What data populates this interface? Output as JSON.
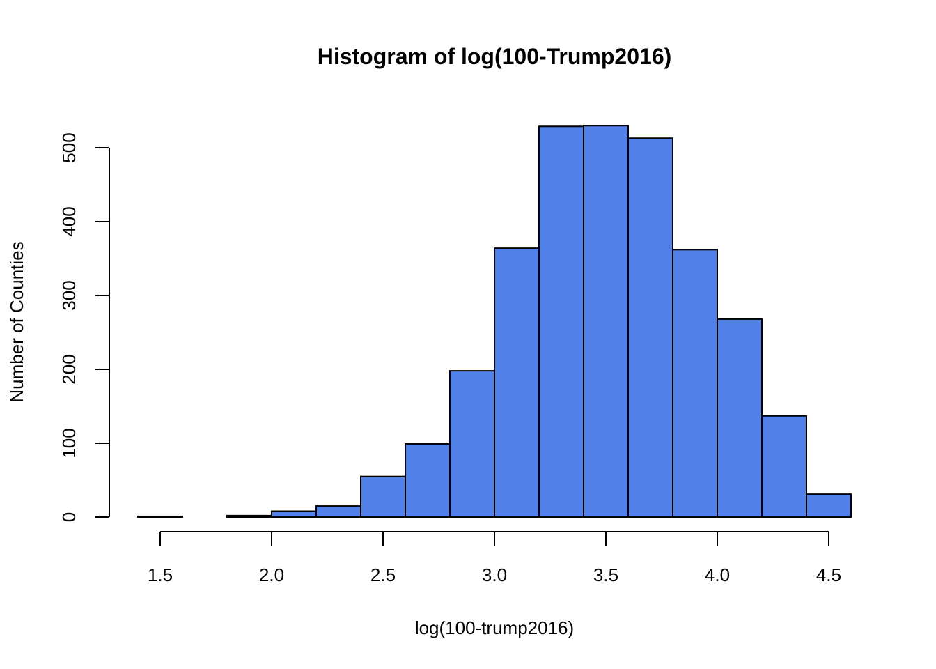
{
  "chart_data": {
    "type": "bar",
    "title": "Histogram of log(100-Trump2016)",
    "xlabel": "log(100-trump2016)",
    "ylabel": "Number of Counties",
    "xlim": [
      1.4,
      4.6
    ],
    "ylim": [
      0,
      530
    ],
    "x_ticks": [
      "1.5",
      "2.0",
      "2.5",
      "3.0",
      "3.5",
      "4.0",
      "4.5"
    ],
    "y_ticks": [
      "0",
      "100",
      "200",
      "300",
      "400",
      "500"
    ],
    "bin_edges": [
      1.4,
      1.6,
      1.8,
      2.0,
      2.2,
      2.4,
      2.6,
      2.8,
      3.0,
      3.2,
      3.4,
      3.6,
      3.8,
      4.0,
      4.2,
      4.4,
      4.6
    ],
    "values": [
      1,
      0,
      2,
      8,
      15,
      55,
      99,
      198,
      364,
      529,
      530,
      513,
      362,
      268,
      137,
      31
    ],
    "bar_color": "#5181e8",
    "grid": false
  }
}
